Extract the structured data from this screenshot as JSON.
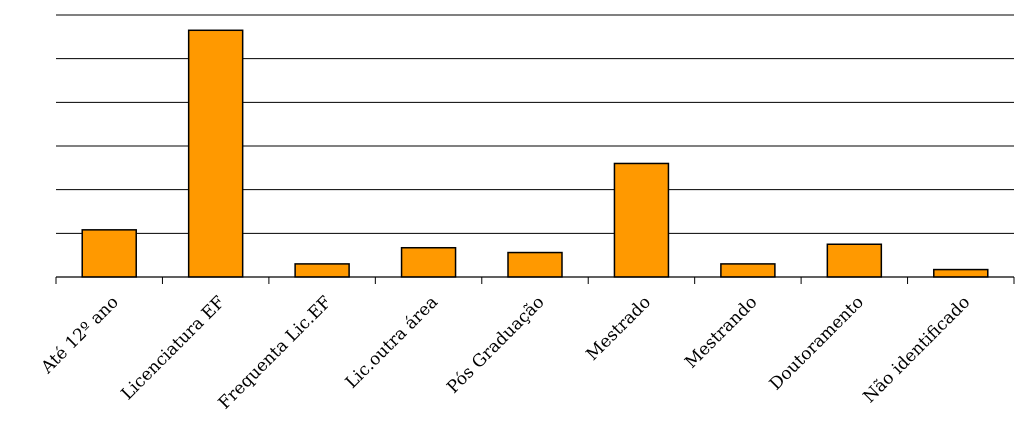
{
  "chart_data": {
    "type": "bar",
    "title": "",
    "xlabel": "",
    "ylabel": "",
    "categories": [
      "Até 12º ano",
      "Licenciatura EF",
      "Frequenta Lic.EF",
      "Lic.outra área",
      "Pós Graduação",
      "Mestrado",
      "Mestrando",
      "Doutoramento",
      "Não identificado"
    ],
    "values": [
      10.8,
      56.5,
      3.0,
      6.7,
      5.6,
      26.0,
      3.0,
      7.5,
      1.7
    ],
    "ylim": [
      0,
      60
    ],
    "gridlines": [
      10,
      20,
      30,
      40,
      50,
      60
    ],
    "grid": true,
    "legend": "none",
    "bar_color": "#FF9900",
    "bar_stroke": "#000000"
  }
}
